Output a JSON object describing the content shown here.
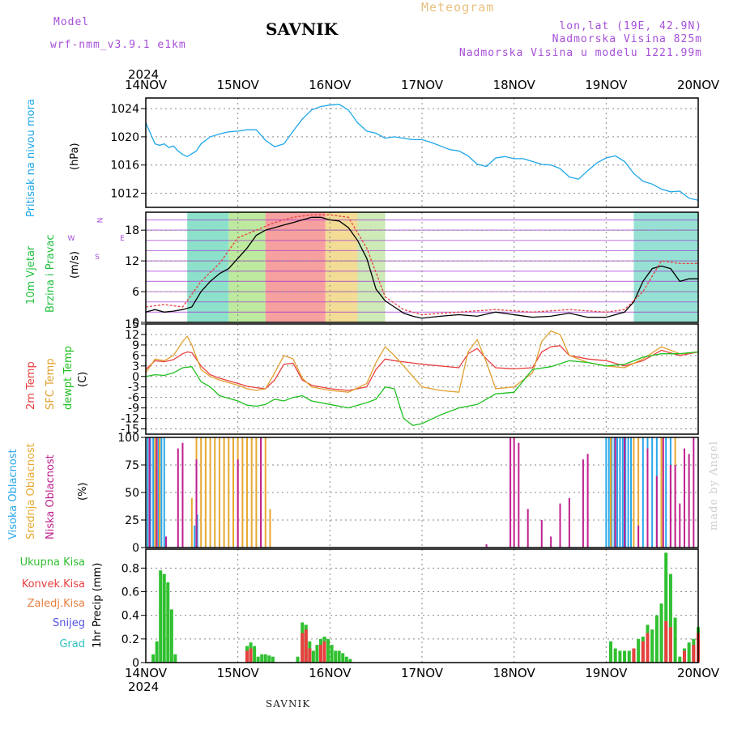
{
  "header": {
    "model_label": "Model",
    "model_name": "wrf-nmm_v3.9.1 e1km",
    "title": "Meteogram",
    "station": "SAVNIK",
    "lonlat": "lon,lat (19E, 42.9N)",
    "elevation": "Nadmorska Visina 825m",
    "elevation_model": "Nadmorska Visina u modelu 1221.99m"
  },
  "footer": {
    "station": "SAVNIK",
    "credit": "made by Angel"
  },
  "colors": {
    "pressure": "#1ea7e8",
    "temp2m": "#e84040",
    "sfc": "#e0a030",
    "dewpt": "#20c020",
    "high_cloud": "#2aa7e8",
    "mid_cloud": "#e8a830",
    "low_cloud": "#c0208f",
    "precip_total": "#30c030",
    "precip_conv": "#e84040",
    "precip_frozen": "#e88040",
    "snow": "#5050e0",
    "hail": "#30c0c0"
  },
  "time_axis": {
    "year": "2024",
    "labels": [
      "14NOV",
      "15NOV",
      "16NOV",
      "17NOV",
      "18NOV",
      "19NOV",
      "20NOV"
    ]
  },
  "chart_data": [
    {
      "type": "line",
      "ylabel_left": "Pritisak na nivou mora",
      "ylabel_unit": "(hPa)",
      "yticks": [
        "1024",
        "1020",
        "1016",
        "1012"
      ],
      "ylim": [
        1010,
        1025.5
      ],
      "x_range_days": [
        0,
        6
      ],
      "series": [
        {
          "name": "Pritisak na nivou mora",
          "x": [
            0,
            0.05,
            0.1,
            0.15,
            0.2,
            0.25,
            0.3,
            0.35,
            0.4,
            0.45,
            0.5,
            0.55,
            0.6,
            0.7,
            0.8,
            0.9,
            1.0,
            1.1,
            1.2,
            1.3,
            1.4,
            1.5,
            1.6,
            1.7,
            1.8,
            1.9,
            2.0,
            2.1,
            2.2,
            2.3,
            2.4,
            2.5,
            2.6,
            2.7,
            2.8,
            2.9,
            3.0,
            3.1,
            3.2,
            3.3,
            3.4,
            3.5,
            3.6,
            3.7,
            3.8,
            3.9,
            4.0,
            4.1,
            4.2,
            4.3,
            4.4,
            4.5,
            4.6,
            4.7,
            4.8,
            4.9,
            5.0,
            5.1,
            5.2,
            5.3,
            5.4,
            5.5,
            5.6,
            5.7,
            5.8,
            5.9,
            6.0
          ],
          "values": [
            1022,
            1020.5,
            1019,
            1018.8,
            1019,
            1018.5,
            1018.7,
            1018,
            1017.5,
            1017.2,
            1017.6,
            1018,
            1019,
            1020,
            1020.4,
            1020.7,
            1020.8,
            1021,
            1021,
            1019.5,
            1018.6,
            1019,
            1020.8,
            1022.5,
            1023.8,
            1024.3,
            1024.5,
            1024.6,
            1023.8,
            1022,
            1020.8,
            1020.5,
            1019.8,
            1020,
            1019.8,
            1019.6,
            1019.6,
            1019.2,
            1018.7,
            1018.2,
            1018,
            1017.3,
            1016.1,
            1015.8,
            1017,
            1017.2,
            1016.9,
            1016.9,
            1016.5,
            1016.1,
            1016,
            1015.5,
            1014.3,
            1014,
            1015.2,
            1016.3,
            1017,
            1017.3,
            1016.5,
            1014.8,
            1013.7,
            1013.3,
            1012.6,
            1012.2,
            1012.3,
            1011.3,
            1011
          ]
        }
      ]
    },
    {
      "type": "line",
      "ylabel_left": [
        "10m Vjetar",
        "Brzina i Pravac"
      ],
      "ylabel_unit": "(m/s)",
      "compass": [
        "N",
        "E",
        "S",
        "W"
      ],
      "yticks": [
        "18",
        "12",
        "6",
        "0"
      ],
      "ylim": [
        0,
        21.5
      ],
      "x_range_days": [
        0,
        6
      ],
      "series": [
        {
          "name": "Brzina",
          "x": [
            0,
            0.1,
            0.2,
            0.3,
            0.4,
            0.5,
            0.6,
            0.7,
            0.8,
            0.9,
            1.0,
            1.1,
            1.2,
            1.3,
            1.4,
            1.5,
            1.6,
            1.7,
            1.8,
            1.9,
            2.0,
            2.1,
            2.2,
            2.3,
            2.4,
            2.5,
            2.6,
            2.7,
            2.8,
            2.9,
            3.0,
            3.2,
            3.4,
            3.6,
            3.8,
            4.0,
            4.2,
            4.4,
            4.6,
            4.8,
            5.0,
            5.1,
            5.2,
            5.3,
            5.4,
            5.5,
            5.6,
            5.7,
            5.8,
            5.9,
            6.0
          ],
          "values": [
            2,
            2.5,
            2,
            2.2,
            2.5,
            3,
            6,
            8,
            9.5,
            10.5,
            12.5,
            14.5,
            17,
            18,
            18.5,
            19,
            19.5,
            20,
            20.5,
            20.5,
            20,
            19.8,
            18.5,
            16,
            12.5,
            6.5,
            4.2,
            3,
            1.8,
            1.2,
            0.8,
            1.2,
            1.5,
            1.2,
            2,
            1.5,
            1,
            1.2,
            1.8,
            1,
            1,
            1.5,
            2,
            4,
            8,
            10.5,
            11,
            10.5,
            8,
            8.5,
            8.5
          ]
        },
        {
          "name": "Udari",
          "x": [
            0,
            0.2,
            0.4,
            0.6,
            0.8,
            1.0,
            1.2,
            1.4,
            1.6,
            1.8,
            2.0,
            2.2,
            2.4,
            2.6,
            2.8,
            3.0,
            3.4,
            3.8,
            4.2,
            4.6,
            5.0,
            5.2,
            5.4,
            5.6,
            5.8,
            6.0
          ],
          "values": [
            3,
            3.5,
            3,
            8,
            11.5,
            16.5,
            18,
            19.5,
            20.5,
            21,
            21,
            20.5,
            14.5,
            5,
            2.5,
            1.5,
            2,
            2.5,
            2,
            2.5,
            2,
            2.5,
            6,
            12,
            11.5,
            11.5
          ]
        }
      ]
    },
    {
      "type": "line",
      "ylabel_left": [
        "2m Temp",
        "SFC Temp",
        "dewpt Temp"
      ],
      "ylabel_unit": "(C)",
      "yticks": [
        "15",
        "12",
        "9",
        "6",
        "3",
        "0",
        "-3",
        "-6",
        "-9",
        "-12",
        "-15"
      ],
      "ylim": [
        -16.5,
        15
      ],
      "x_range_days": [
        0,
        6
      ],
      "series": [
        {
          "name": "2m Temp",
          "x": [
            0,
            0.1,
            0.2,
            0.3,
            0.4,
            0.45,
            0.5,
            0.6,
            0.7,
            0.8,
            1.0,
            1.1,
            1.2,
            1.3,
            1.4,
            1.5,
            1.6,
            1.7,
            1.8,
            2.0,
            2.2,
            2.4,
            2.5,
            2.6,
            2.7,
            3.0,
            3.2,
            3.4,
            3.5,
            3.6,
            3.7,
            3.8,
            4.0,
            4.2,
            4.3,
            4.4,
            4.5,
            4.6,
            4.8,
            5.0,
            5.2,
            5.4,
            5.6,
            5.8,
            6.0
          ],
          "values": [
            2,
            4.5,
            4.2,
            4.8,
            6.5,
            7,
            6.8,
            3,
            0.5,
            -0.5,
            -2,
            -2.8,
            -3.2,
            -3.5,
            -1,
            3.5,
            3.8,
            -1,
            -2.5,
            -3.5,
            -4,
            -3,
            2,
            5,
            4.5,
            3.5,
            3,
            2.5,
            6.5,
            8,
            5,
            2.5,
            2.2,
            2.5,
            7,
            8.5,
            8.8,
            6,
            5,
            4.5,
            3,
            4.5,
            7.5,
            6,
            7
          ]
        },
        {
          "name": "SFC Temp",
          "x": [
            0,
            0.1,
            0.2,
            0.3,
            0.4,
            0.45,
            0.5,
            0.6,
            0.7,
            0.8,
            1.0,
            1.1,
            1.2,
            1.3,
            1.4,
            1.5,
            1.6,
            1.7,
            1.8,
            2.0,
            2.2,
            2.4,
            2.5,
            2.6,
            2.7,
            3.0,
            3.2,
            3.4,
            3.5,
            3.6,
            3.7,
            3.8,
            4.0,
            4.2,
            4.3,
            4.4,
            4.5,
            4.6,
            4.8,
            5.0,
            5.2,
            5.4,
            5.6,
            5.8,
            6.0
          ],
          "values": [
            1,
            5,
            4.5,
            6,
            10,
            11.5,
            9,
            2,
            0,
            -1,
            -2.5,
            -3.5,
            -4,
            -3.5,
            1,
            6,
            5,
            -0.5,
            -3,
            -4,
            -4.5,
            -2,
            4,
            8.5,
            6,
            -3,
            -4,
            -4.5,
            7,
            10.5,
            4,
            -3.5,
            -3,
            1,
            10,
            13,
            12,
            6,
            4,
            3,
            2.5,
            5,
            8.5,
            6.5,
            7
          ]
        },
        {
          "name": "dewpt Temp",
          "x": [
            0,
            0.1,
            0.2,
            0.3,
            0.4,
            0.5,
            0.6,
            0.7,
            0.8,
            1.0,
            1.1,
            1.2,
            1.3,
            1.4,
            1.5,
            1.6,
            1.7,
            1.8,
            2.0,
            2.2,
            2.4,
            2.5,
            2.6,
            2.7,
            2.8,
            2.9,
            3.0,
            3.2,
            3.4,
            3.6,
            3.8,
            4.0,
            4.2,
            4.4,
            4.6,
            4.8,
            5.0,
            5.2,
            5.4,
            5.6,
            5.8,
            6.0
          ],
          "values": [
            0,
            0.5,
            0.3,
            1,
            2.5,
            2.8,
            -1.5,
            -3,
            -5.5,
            -7,
            -8.2,
            -8.5,
            -8,
            -6.5,
            -7,
            -6,
            -5.5,
            -7,
            -8,
            -9,
            -7.5,
            -6.5,
            -3,
            -3.5,
            -12,
            -14,
            -13.5,
            -11,
            -9,
            -8,
            -5,
            -4.5,
            2,
            2.8,
            4.5,
            4,
            3,
            3.5,
            5.5,
            6.5,
            6.5,
            7
          ]
        }
      ]
    },
    {
      "type": "bar",
      "ylabel_left": [
        "Visoka Oblacnost",
        "Srednja Oblacnost",
        "Niska Oblacnost"
      ],
      "ylabel_unit": "(%)",
      "yticks": [
        "100",
        "75",
        "50",
        "25",
        "0"
      ],
      "ylim": [
        0,
        100
      ],
      "x_range_days": [
        0,
        6
      ],
      "series": [
        {
          "name": "Visoka Oblacnost",
          "x": [
            0.02,
            0.05,
            0.08,
            0.11,
            0.14,
            0.17,
            0.2,
            0.53,
            0.56,
            5.0,
            5.03,
            5.06,
            5.09,
            5.12,
            5.15,
            5.18,
            5.21,
            5.24,
            5.27,
            5.4,
            5.45,
            5.5,
            5.55,
            5.6,
            5.65,
            5.7
          ],
          "values": [
            100,
            100,
            100,
            100,
            100,
            100,
            100,
            20,
            30,
            100,
            100,
            100,
            100,
            100,
            100,
            100,
            100,
            100,
            100,
            100,
            100,
            100,
            100,
            100,
            100,
            100
          ]
        },
        {
          "name": "Srednja Oblacnost",
          "x": [
            0.1,
            0.15,
            0.5,
            0.55,
            0.6,
            0.65,
            0.7,
            0.75,
            0.8,
            0.85,
            0.9,
            0.95,
            1.0,
            1.05,
            1.1,
            1.15,
            1.2,
            1.25,
            1.3,
            1.35,
            5.05,
            5.3,
            5.35,
            5.6,
            5.7,
            5.75
          ],
          "values": [
            100,
            100,
            45,
            100,
            100,
            100,
            100,
            100,
            100,
            100,
            100,
            100,
            100,
            100,
            100,
            100,
            100,
            100,
            100,
            35,
            100,
            100,
            100,
            100,
            45,
            100
          ]
        },
        {
          "name": "Niska Oblacnost",
          "x": [
            0.04,
            0.12,
            0.22,
            0.35,
            0.4,
            0.55,
            1.0,
            1.25,
            3.7,
            3.96,
            4.0,
            4.05,
            4.15,
            4.3,
            4.4,
            4.5,
            4.6,
            4.65,
            4.75,
            4.8,
            5.1,
            5.2,
            5.35,
            5.45,
            5.55,
            5.62,
            5.7,
            5.75,
            5.8,
            5.85,
            5.9,
            5.95
          ],
          "values": [
            100,
            100,
            10,
            90,
            95,
            80,
            80,
            100,
            3,
            100,
            100,
            95,
            35,
            25,
            10,
            40,
            45,
            0,
            80,
            85,
            100,
            100,
            20,
            90,
            65,
            100,
            75,
            75,
            40,
            90,
            85,
            100
          ]
        }
      ]
    },
    {
      "type": "bar",
      "ylabel_left": [
        "Ukupna Kisa",
        "Konvek.Kisa",
        "Zaledj.Kisa",
        "Snijeg",
        "Grad"
      ],
      "ylabel_unit": "1hr Precip (mm)",
      "yticks": [
        "0.8",
        "0.6",
        "0.4",
        "0.2",
        "0"
      ],
      "ylim": [
        0,
        0.96
      ],
      "x_range_days": [
        0,
        6
      ],
      "series": [
        {
          "name": "Ukupna Kisa",
          "x": [
            0.08,
            0.12,
            0.16,
            0.2,
            0.24,
            0.28,
            0.32,
            1.1,
            1.14,
            1.18,
            1.22,
            1.26,
            1.3,
            1.34,
            1.38,
            1.65,
            1.7,
            1.74,
            1.78,
            1.82,
            1.86,
            1.9,
            1.94,
            1.98,
            2.02,
            2.06,
            2.1,
            2.14,
            2.18,
            2.22,
            5.05,
            5.1,
            5.15,
            5.2,
            5.25,
            5.3,
            5.35,
            5.4,
            5.45,
            5.5,
            5.55,
            5.6,
            5.65,
            5.7,
            5.75,
            5.8,
            5.85,
            5.9,
            5.95,
            6.0
          ],
          "values": [
            0.07,
            0.18,
            0.78,
            0.75,
            0.68,
            0.45,
            0.07,
            0.14,
            0.17,
            0.14,
            0.05,
            0.07,
            0.07,
            0.06,
            0.05,
            0.05,
            0.34,
            0.32,
            0.18,
            0.1,
            0.15,
            0.2,
            0.22,
            0.2,
            0.15,
            0.1,
            0.1,
            0.08,
            0.05,
            0.03,
            0.18,
            0.12,
            0.1,
            0.1,
            0.1,
            0.12,
            0.2,
            0.22,
            0.32,
            0.28,
            0.4,
            0.5,
            0.93,
            0.75,
            0.38,
            0.05,
            0.12,
            0.17,
            0.2,
            0.3
          ]
        },
        {
          "name": "Konvek.Kisa",
          "x": [
            1.1,
            1.14,
            1.7,
            1.74,
            1.78,
            1.9,
            1.94,
            5.3,
            5.4,
            5.45,
            5.65,
            5.7,
            5.85,
            5.95,
            6.0
          ],
          "values": [
            0.1,
            0.12,
            0.25,
            0.28,
            0.12,
            0.15,
            0.18,
            0.12,
            0.18,
            0.25,
            0.35,
            0.3,
            0.1,
            0.15,
            0.25
          ]
        }
      ]
    }
  ]
}
